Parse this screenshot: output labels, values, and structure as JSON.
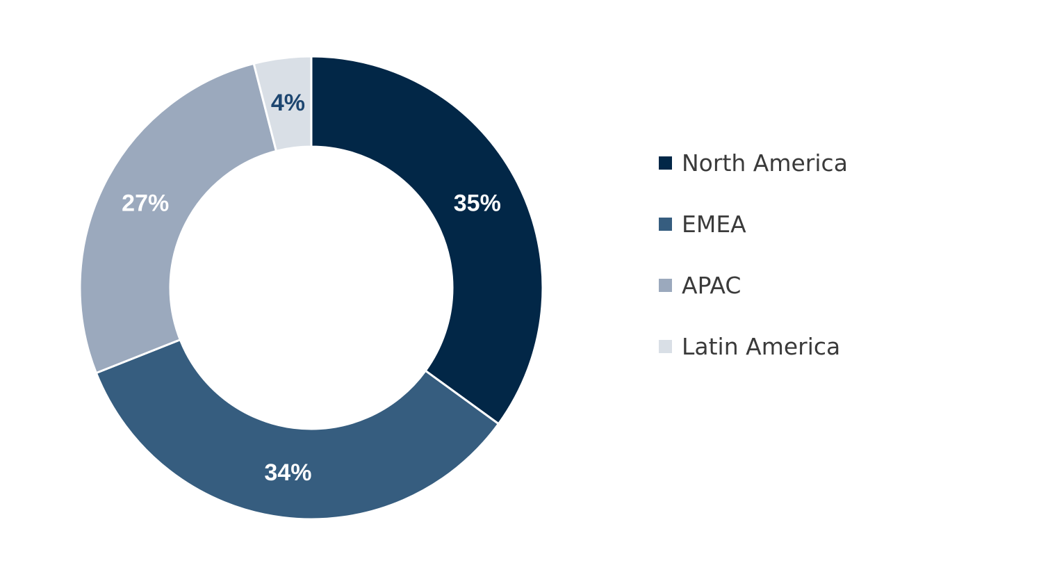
{
  "chart_data": {
    "type": "pie",
    "donut": true,
    "categories": [
      "North America",
      "EMEA",
      "APAC",
      "Latin America"
    ],
    "values": [
      35,
      34,
      27,
      4
    ],
    "value_labels": [
      "35%",
      "34%",
      "27%",
      "4%"
    ],
    "colors": [
      "#022747",
      "#365d7f",
      "#9ba9bd",
      "#d9dfe6"
    ],
    "label_colors": [
      "#ffffff",
      "#ffffff",
      "#ffffff",
      "#1d4670"
    ],
    "start_angle_deg": 0,
    "direction": "clockwise",
    "legend_position": "right",
    "title": ""
  }
}
